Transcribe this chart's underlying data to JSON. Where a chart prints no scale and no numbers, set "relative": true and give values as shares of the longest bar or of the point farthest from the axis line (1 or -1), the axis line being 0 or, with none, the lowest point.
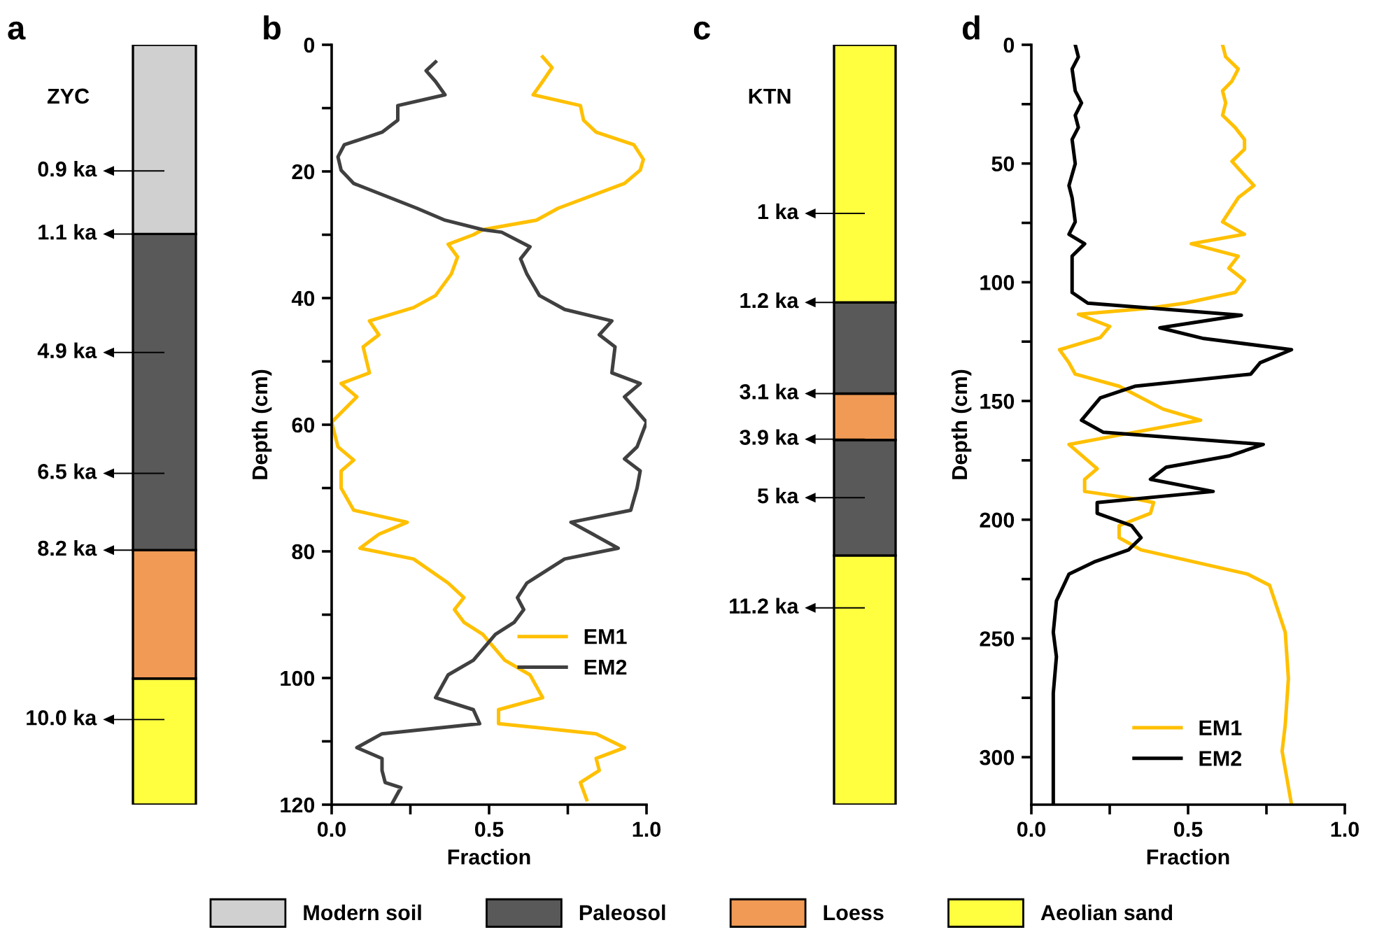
{
  "chart_data": [
    {
      "type": "bar",
      "title": "a",
      "stacked": true,
      "relative": true,
      "categories": [
        null
      ],
      "legend": "bottom",
      "series": [
        {
          "name": "Aeolian sand",
          "color": "#ffff40",
          "values": [
            0.166
          ]
        },
        {
          "name": "Loess",
          "color": "#f09a55",
          "values": [
            0.169
          ]
        },
        {
          "name": "Paleosol",
          "color": "#595959",
          "values": [
            0.416
          ]
        },
        {
          "name": "Modern soil",
          "color": "#d0d0d0",
          "values": [
            0.249
          ]
        }
      ],
      "annotations": [
        "ZYC",
        "0.9 ka",
        "1.1 ka",
        "4.9 ka",
        "6.5 ka",
        "8.2 ka",
        "10.0 ka"
      ]
    },
    {
      "type": "line",
      "title": "b",
      "xlabel": "Fraction",
      "ylabel": "Depth (cm)",
      "legend": "bottom right",
      "xlim": [
        0,
        1
      ],
      "xticks": [
        {
          "value": 0,
          "label": "0.0"
        },
        {
          "value": 0.25,
          "label": null
        },
        {
          "value": 0.5,
          "label": "0.5"
        },
        {
          "value": 0.75,
          "label": null
        },
        {
          "value": 1,
          "label": "1.0"
        }
      ],
      "ylim": [
        120,
        0
      ],
      "yticks": [
        0,
        {
          "value": 10,
          "label": null
        },
        20,
        {
          "value": 30,
          "label": null
        },
        40,
        {
          "value": 50,
          "label": null
        },
        60,
        {
          "value": 70,
          "label": null
        },
        80,
        {
          "value": 90,
          "label": null
        },
        100,
        {
          "value": 110,
          "label": null
        },
        120
      ],
      "series": [
        {
          "name": "EM1",
          "color": "#ffc000",
          "x": [
            0.67,
            0.7,
            0.67,
            0.64,
            0.79,
            0.8,
            0.84,
            0.96,
            0.99,
            0.98,
            0.93,
            0.72,
            0.65,
            0.48,
            0.45,
            0.37,
            0.4,
            0.38,
            0.33,
            0.26,
            0.12,
            0.15,
            0.1,
            0.12,
            0.03,
            0.08,
            0.0,
            0.02,
            0.07,
            0.03,
            0.03,
            0.07,
            0.24,
            0.15,
            0.09,
            0.26,
            0.37,
            0.42,
            0.39,
            0.42,
            0.48,
            0.55,
            0.63,
            0.67,
            0.53,
            0.53,
            0.84,
            0.93,
            0.84,
            0.85,
            0.79,
            0.81
          ],
          "values": [
            1.9,
            3.6,
            5.8,
            7.9,
            9.6,
            11.9,
            13.8,
            15.8,
            18.1,
            19.8,
            21.9,
            25.8,
            27.7,
            29.2,
            30.0,
            31.5,
            33.5,
            36.2,
            39.6,
            41.5,
            43.6,
            45.8,
            47.7,
            51.8,
            53.5,
            55.6,
            59.6,
            63.5,
            65.6,
            67.3,
            70.0,
            73.5,
            75.4,
            77.3,
            79.5,
            81.2,
            85.0,
            87.3,
            89.2,
            91.2,
            93.1,
            97.2,
            99.5,
            103.1,
            105.0,
            107.2,
            108.8,
            111.0,
            112.7,
            114.6,
            116.5,
            119.2
          ]
        },
        {
          "name": "EM2",
          "color": "#404040",
          "x": [
            0.33,
            0.3,
            0.33,
            0.36,
            0.21,
            0.21,
            0.16,
            0.04,
            0.02,
            0.03,
            0.07,
            0.27,
            0.36,
            0.48,
            0.54,
            0.63,
            0.6,
            0.62,
            0.66,
            0.74,
            0.89,
            0.85,
            0.9,
            0.89,
            0.98,
            0.93,
            1.0,
            0.97,
            0.93,
            0.98,
            0.97,
            0.95,
            0.76,
            0.83,
            0.91,
            0.74,
            0.62,
            0.59,
            0.61,
            0.58,
            0.52,
            0.45,
            0.37,
            0.33,
            0.45,
            0.47,
            0.16,
            0.08,
            0.16,
            0.16,
            0.17,
            0.22,
            0.19
          ],
          "values": [
            2.7,
            4.1,
            5.8,
            7.9,
            9.6,
            11.9,
            13.8,
            15.8,
            17.7,
            19.8,
            21.9,
            25.8,
            27.7,
            29.2,
            29.6,
            31.9,
            33.8,
            36.2,
            39.6,
            41.8,
            43.6,
            45.8,
            47.7,
            51.8,
            53.5,
            55.6,
            59.6,
            63.5,
            65.4,
            67.3,
            70.0,
            73.5,
            75.4,
            77.3,
            79.5,
            81.2,
            85.0,
            87.3,
            89.2,
            91.2,
            93.1,
            97.2,
            99.5,
            103.1,
            105.0,
            107.2,
            108.8,
            111.0,
            112.7,
            114.6,
            116.5,
            117.3,
            120.0
          ]
        }
      ]
    },
    {
      "type": "bar",
      "title": "c",
      "stacked": true,
      "relative": true,
      "categories": [
        null
      ],
      "series": [
        {
          "color": "#ffff40",
          "values": [
            0.328
          ]
        },
        {
          "color": "#595959",
          "values": [
            0.152
          ]
        },
        {
          "color": "#f09a55",
          "values": [
            0.061
          ]
        },
        {
          "color": "#595959",
          "values": [
            0.12
          ]
        },
        {
          "color": "#ffff40",
          "values": [
            0.339
          ]
        }
      ],
      "annotations": [
        "KTN",
        "1 ka",
        "1.2 ka",
        "3.1 ka",
        "3.9 ka",
        "5 ka",
        "11.2 ka"
      ]
    },
    {
      "type": "line",
      "title": "d",
      "xlabel": "Fraction",
      "ylabel": "Depth (cm)",
      "legend": "bottom",
      "xlim": [
        0,
        1
      ],
      "xticks": [
        {
          "value": 0,
          "label": "0.0"
        },
        {
          "value": 0.25,
          "label": null
        },
        {
          "value": 0.5,
          "label": "0.5"
        },
        {
          "value": 0.75,
          "label": null
        },
        {
          "value": 1,
          "label": "1.0"
        }
      ],
      "ylim": [
        320,
        0
      ],
      "yticks": [
        0,
        {
          "value": 25,
          "label": null
        },
        50,
        {
          "value": 75,
          "label": null
        },
        100,
        {
          "value": 125,
          "label": null
        },
        150,
        {
          "value": 175,
          "label": null
        },
        200,
        {
          "value": 225,
          "label": null
        },
        250,
        {
          "value": 275,
          "label": null
        },
        300
      ],
      "series": [
        {
          "name": "EM1",
          "color": "#ffc000",
          "x": [
            0.61,
            0.62,
            0.66,
            0.64,
            0.61,
            0.62,
            0.61,
            0.65,
            0.68,
            0.68,
            0.64,
            0.71,
            0.66,
            0.61,
            0.68,
            0.51,
            0.66,
            0.63,
            0.68,
            0.65,
            0.49,
            0.37,
            0.15,
            0.25,
            0.22,
            0.09,
            0.12,
            0.14,
            0.28,
            0.42,
            0.54,
            0.27,
            0.12,
            0.21,
            0.17,
            0.17,
            0.33,
            0.39,
            0.38,
            0.28,
            0.28,
            0.35,
            0.52,
            0.69,
            0.76,
            0.81,
            0.82,
            0.81,
            0.8,
            0.83
          ],
          "values": [
            0,
            5.1,
            10.2,
            15.3,
            19.4,
            24.5,
            29.7,
            34.8,
            39.9,
            44.0,
            49.1,
            59.3,
            64.4,
            74.6,
            79.8,
            83.8,
            89.0,
            94.1,
            99.2,
            104.3,
            108.8,
            111.0,
            113.5,
            118.6,
            123.3,
            128.4,
            133.9,
            138.7,
            143.8,
            153.4,
            158.1,
            164.6,
            168.3,
            178.5,
            183.0,
            188.1,
            191.2,
            192.8,
            197.3,
            202.5,
            207.6,
            212.7,
            217.8,
            222.9,
            227.6,
            247.4,
            266.9,
            286.3,
            297.5,
            320
          ]
        },
        {
          "name": "EM2",
          "color": "#000000",
          "x": [
            0.14,
            0.15,
            0.13,
            0.14,
            0.16,
            0.14,
            0.15,
            0.13,
            0.14,
            0.12,
            0.13,
            0.14,
            0.12,
            0.17,
            0.13,
            0.13,
            0.13,
            0.18,
            0.67,
            0.41,
            0.55,
            0.83,
            0.73,
            0.7,
            0.33,
            0.22,
            0.16,
            0.23,
            0.74,
            0.63,
            0.43,
            0.38,
            0.58,
            0.21,
            0.21,
            0.32,
            0.35,
            0.31,
            0.2,
            0.12,
            0.08,
            0.07,
            0.08,
            0.07,
            0.07,
            0.07
          ],
          "values": [
            0,
            5.1,
            10.2,
            19.4,
            24.5,
            29.7,
            34.8,
            39.9,
            50.1,
            59.3,
            64.4,
            74.6,
            79.8,
            83.8,
            89.0,
            99.2,
            104.3,
            108.8,
            113.9,
            119.2,
            123.7,
            128.4,
            133.9,
            138.7,
            143.8,
            148.7,
            158.1,
            163.2,
            168.3,
            173.2,
            177.9,
            183.0,
            188.1,
            192.8,
            197.3,
            202.5,
            207.6,
            212.7,
            217.8,
            222.9,
            234.2,
            247.4,
            257.7,
            273.0,
            285.3,
            320
          ]
        }
      ]
    }
  ]
}
